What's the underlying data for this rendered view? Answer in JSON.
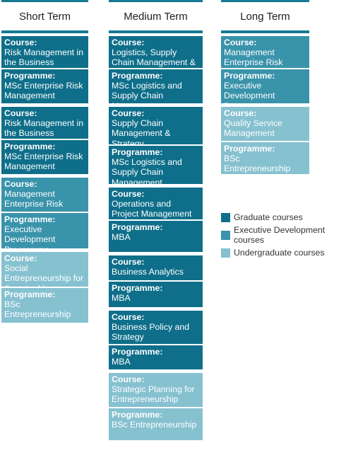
{
  "labels": {
    "course": "Course:",
    "programme": "Programme:"
  },
  "columns": [
    {
      "title": "Short Term",
      "blocks": [
        {
          "type": "grad",
          "course": "Risk Management in the Business Enterprise",
          "programme": "MSc Enterprise Risk Management"
        },
        {
          "type": "grad",
          "course": "Risk Management in the Business Enterprise",
          "programme": "MSc Enterprise Risk Management"
        },
        {
          "type": "exec",
          "course": "Management Enterprise Risk",
          "programme": "Executive Development Programme"
        },
        {
          "type": "ugrad",
          "course": "Social Entrepreneurship for Sustainable",
          "programme": "BSc Entrepreneurship"
        }
      ]
    },
    {
      "title": "Medium Term",
      "blocks": [
        {
          "type": "grad",
          "course": "Logistics, Supply Chain Management & Strategy",
          "programme": "MSc Logistics and Supply Chain Management"
        },
        {
          "type": "grad",
          "course": "Supply Chain Management & Strategy",
          "programme": "MSc Logistics and Supply Chain Management"
        },
        {
          "type": "grad",
          "course": "Operations and Project Management",
          "programme": "MBA"
        },
        {
          "type": "grad",
          "course": "Business Analytics",
          "programme": "MBA"
        },
        {
          "type": "grad",
          "course": "Business Policy and Strategy",
          "programme": "MBA"
        },
        {
          "type": "ugrad",
          "course": "Strategic Planning for Entrepreneurship",
          "programme": "BSc Entrepreneurship"
        }
      ]
    },
    {
      "title": "Long Term",
      "blocks": [
        {
          "type": "exec",
          "course": "Management Enterprise Risk",
          "programme": "Executive Development Programme"
        },
        {
          "type": "ugrad",
          "course": "Quality Service Management",
          "programme": "BSc Entrepreneurship"
        }
      ]
    }
  ],
  "legend": [
    {
      "type": "grad",
      "label": "Graduate courses",
      "color": "#0f6f8a"
    },
    {
      "type": "exec",
      "label": "Executive Development courses",
      "color": "#3993ab"
    },
    {
      "type": "ugrad",
      "label": "Undergraduate courses",
      "color": "#86c1d0"
    }
  ],
  "colors": {
    "graduate": "#0f6f8a",
    "executive": "#3993ab",
    "undergraduate": "#86c1d0",
    "rule": "#157a92"
  }
}
